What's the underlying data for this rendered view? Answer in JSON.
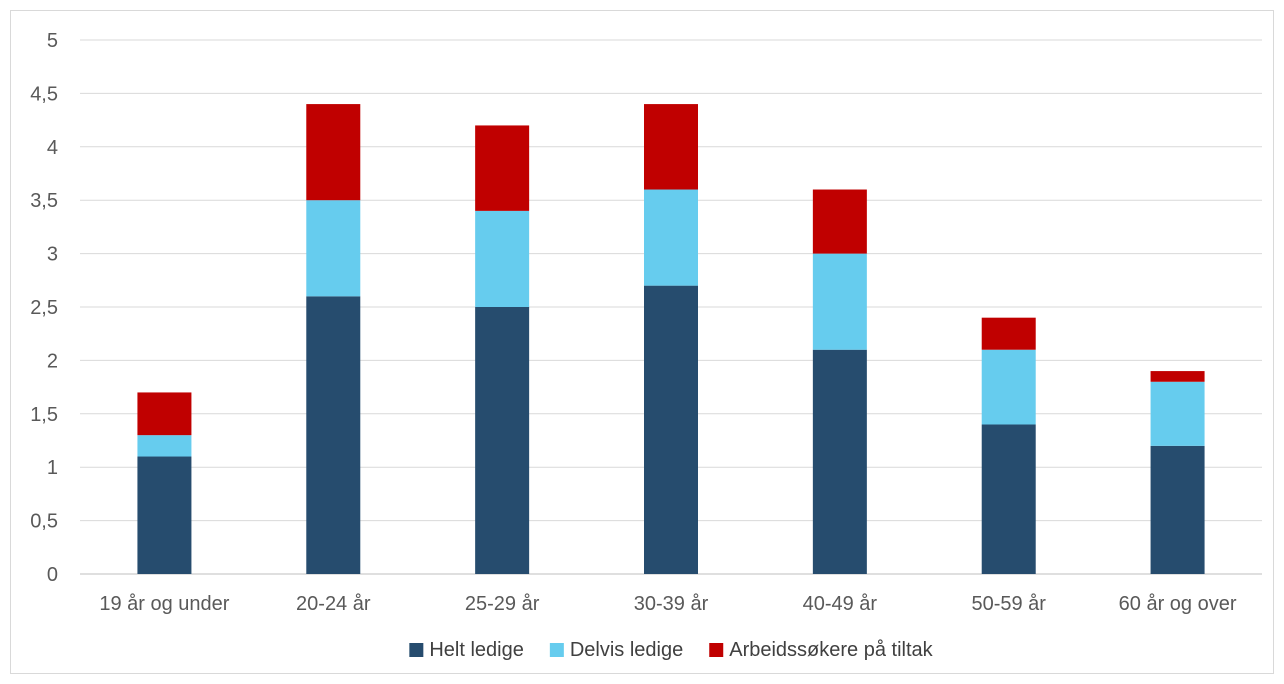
{
  "chart_data": {
    "type": "bar",
    "stacked": true,
    "categories": [
      "19 år og under",
      "20-24 år",
      "25-29 år",
      "30-39 år",
      "40-49 år",
      "50-59 år",
      "60 år og over"
    ],
    "series": [
      {
        "name": "Helt ledige",
        "color": "#264c6e",
        "values": [
          1.1,
          2.6,
          2.5,
          2.7,
          2.1,
          1.4,
          1.2
        ]
      },
      {
        "name": "Delvis ledige",
        "color": "#66ccee",
        "values": [
          0.2,
          0.9,
          0.9,
          0.9,
          0.9,
          0.7,
          0.6
        ]
      },
      {
        "name": "Arbeidssøkere på tiltak",
        "color": "#c00000",
        "values": [
          0.4,
          0.9,
          0.8,
          0.8,
          0.6,
          0.3,
          0.1
        ]
      }
    ],
    "y_ticks": [
      "0",
      "0,5",
      "1",
      "1,5",
      "2",
      "2,5",
      "3",
      "3,5",
      "4",
      "4,5",
      "5"
    ],
    "ylim": [
      0,
      5
    ],
    "grid": true,
    "legend_position": "bottom",
    "title": "",
    "xlabel": "",
    "ylabel": ""
  }
}
